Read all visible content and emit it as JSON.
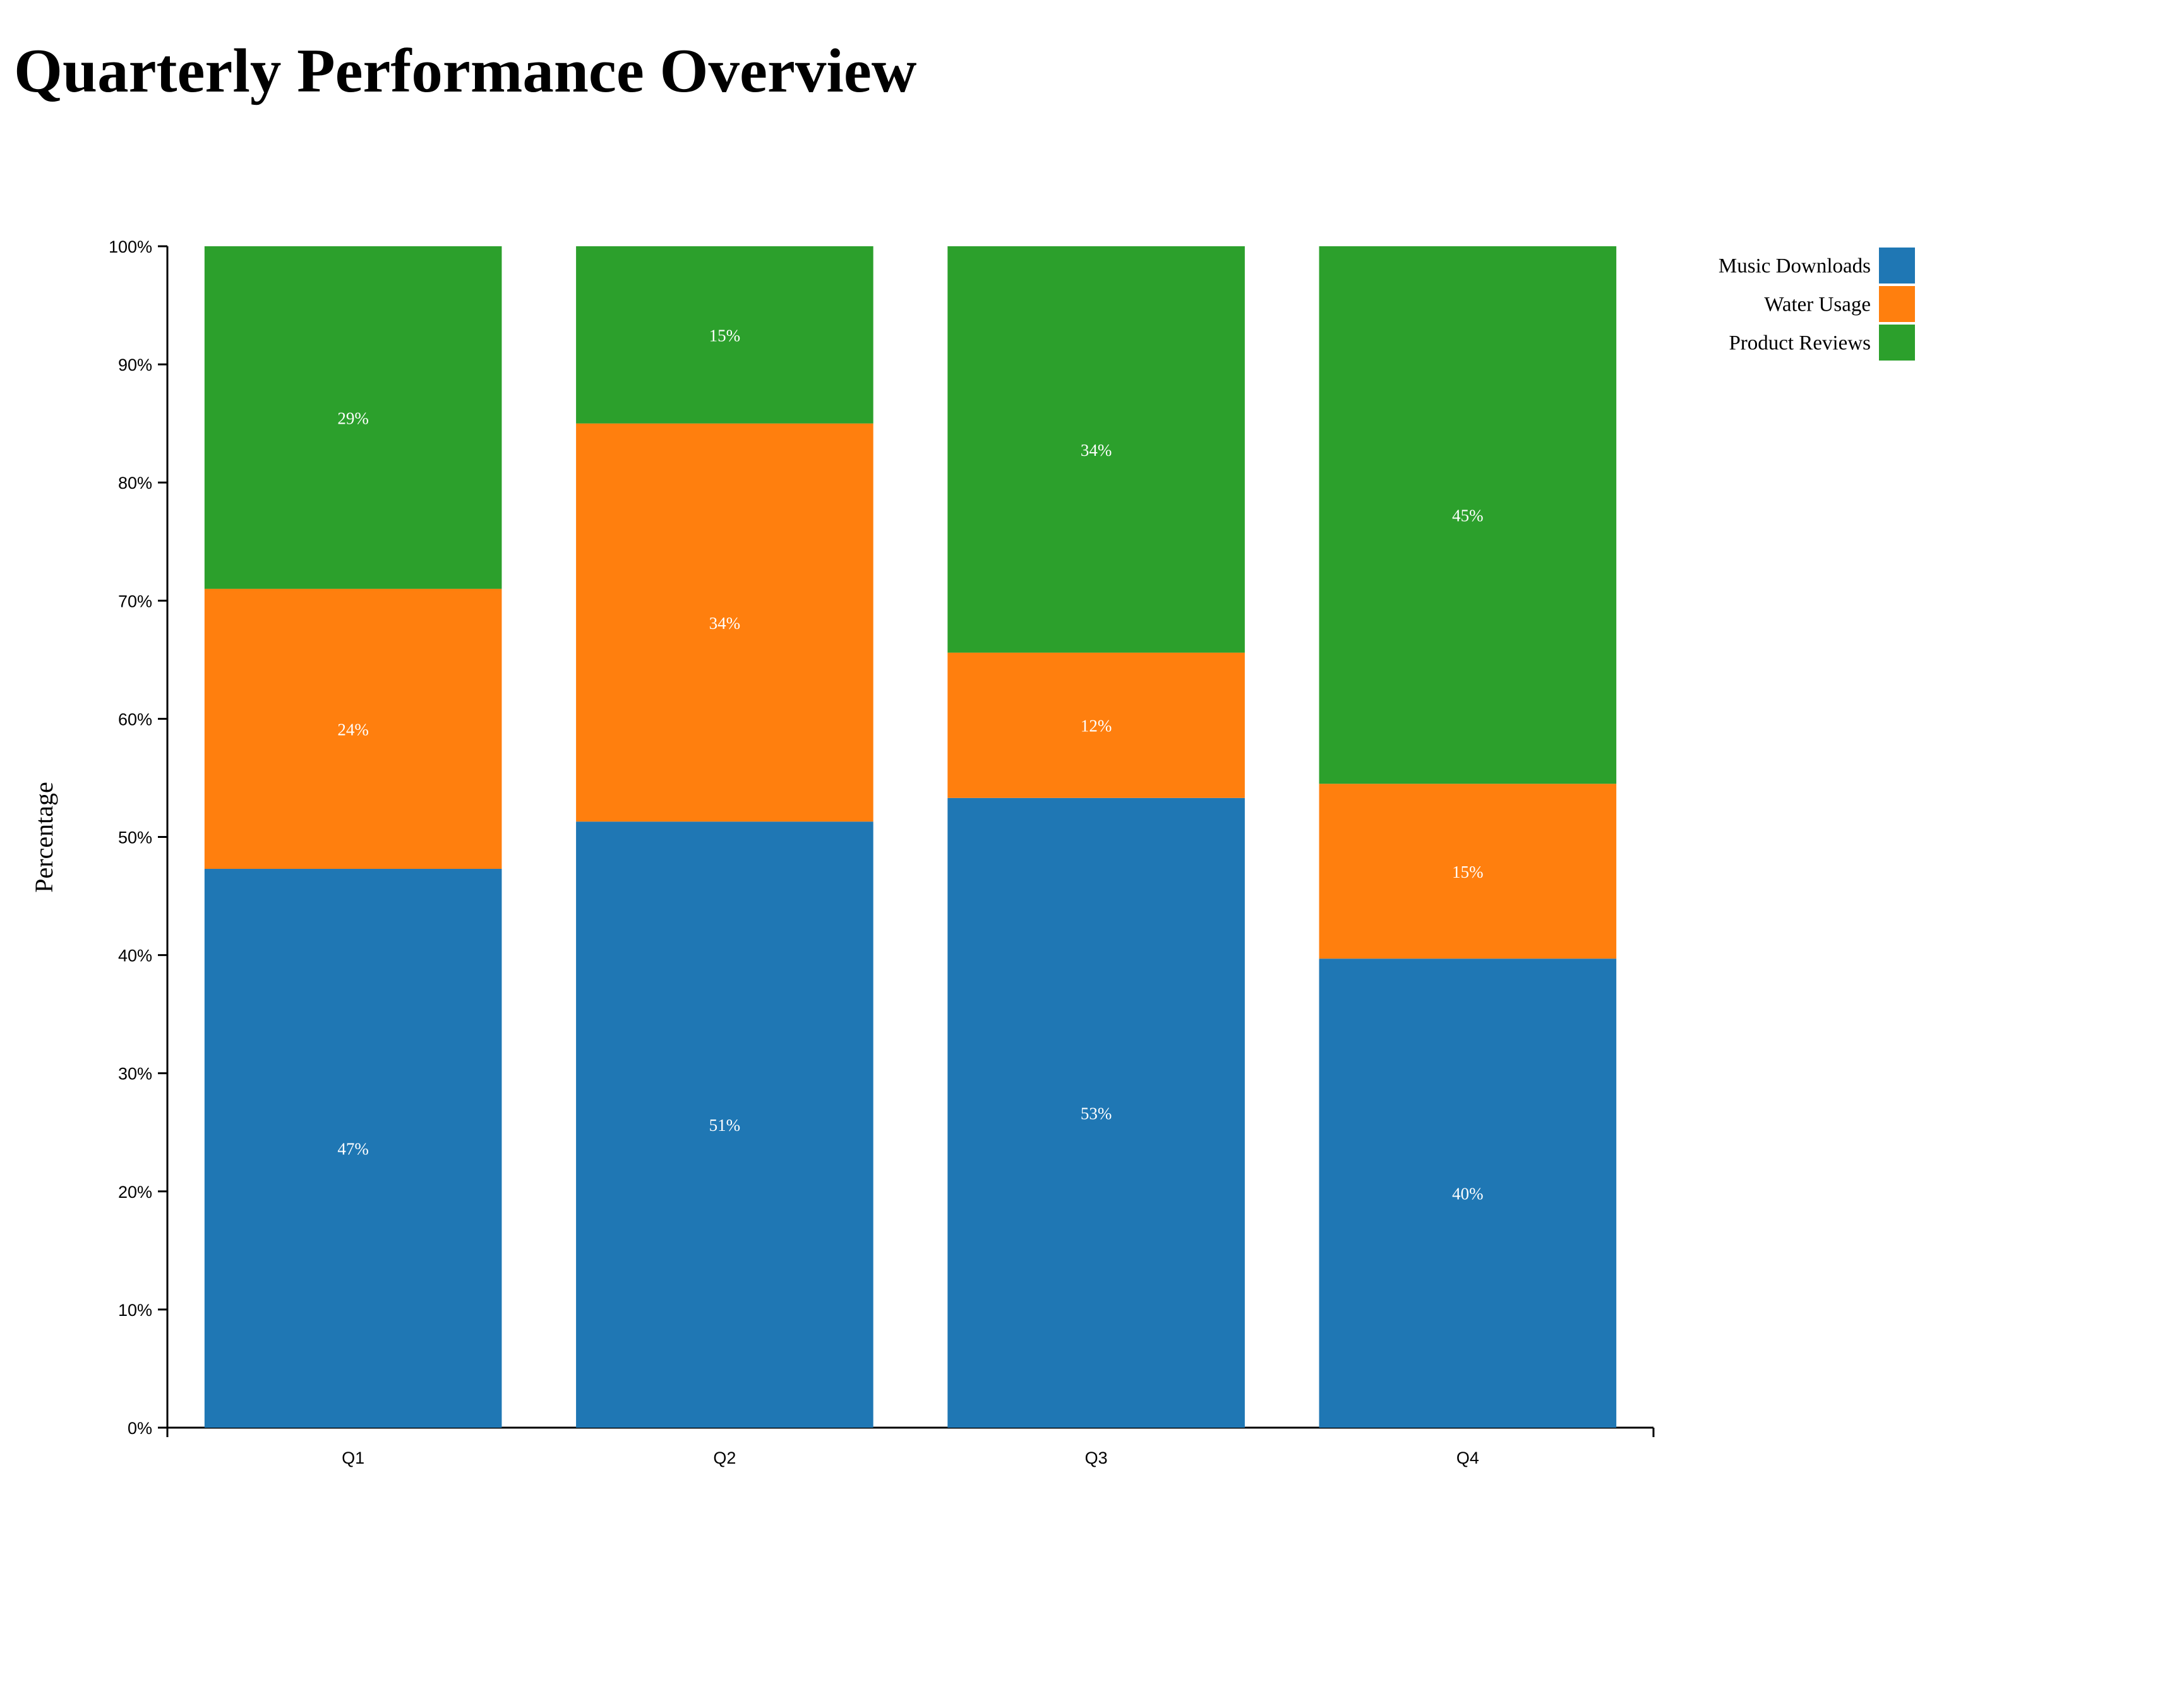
{
  "chart_data": {
    "type": "bar",
    "stacked": "percent",
    "title": "Quarterly Performance Overview",
    "xlabel": "",
    "ylabel": "Percentage",
    "ylim": [
      0,
      100
    ],
    "y_ticks": [
      "0%",
      "10%",
      "20%",
      "30%",
      "40%",
      "50%",
      "60%",
      "70%",
      "80%",
      "90%",
      "100%"
    ],
    "categories": [
      "Q1",
      "Q2",
      "Q3",
      "Q4"
    ],
    "series": [
      {
        "name": "Music Downloads",
        "color": "#1f77b4",
        "values": [
          47.3,
          51.3,
          53.3,
          39.7
        ],
        "labels": [
          "47%",
          "51%",
          "53%",
          "40%"
        ]
      },
      {
        "name": "Water Usage",
        "color": "#ff7f0e",
        "values": [
          23.7,
          33.7,
          12.3,
          14.8
        ],
        "labels": [
          "24%",
          "34%",
          "12%",
          "15%"
        ]
      },
      {
        "name": "Product Reviews",
        "color": "#2ca02c",
        "values": [
          29.0,
          15.0,
          34.4,
          45.5
        ],
        "labels": [
          "29%",
          "15%",
          "34%",
          "45%"
        ]
      }
    ],
    "legend_position": "top-right",
    "grid": false
  }
}
